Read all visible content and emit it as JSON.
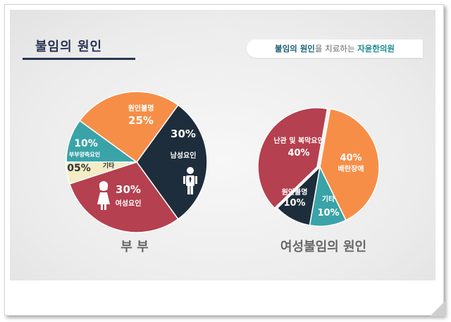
{
  "header": {
    "title": "불임의 원인",
    "tagline_part1": "불임의 원인",
    "tagline_part2": "을 치료하는 ",
    "tagline_part3": "자윤한의원"
  },
  "colors": {
    "navy": "#1e2d3b",
    "crimson": "#b5404f",
    "orange": "#f68e48",
    "teal": "#3aa3a8",
    "cream": "#f3ecc4"
  },
  "icons": {
    "male": "male-person-icon",
    "female": "female-person-icon"
  },
  "chart_data": [
    {
      "type": "pie",
      "title": "부 부",
      "series": [
        {
          "name": "남성요인",
          "value": 30,
          "label": "30%",
          "color": "#1e2d3b"
        },
        {
          "name": "여성요인",
          "value": 30,
          "label": "30%",
          "color": "#b5404f"
        },
        {
          "name": "기타",
          "value": 5,
          "label": "05%",
          "color": "#f3ecc4"
        },
        {
          "name": "부부양측요인",
          "value": 10,
          "label": "10%",
          "color": "#3aa3a8"
        },
        {
          "name": "원인불명",
          "value": 25,
          "label": "25%",
          "color": "#f68e48"
        }
      ]
    },
    {
      "type": "pie",
      "title": "여성불임의 원인",
      "series": [
        {
          "name": "배란장애",
          "value": 40,
          "label": "40%",
          "color": "#f68e48"
        },
        {
          "name": "기타",
          "value": 10,
          "label": "10%",
          "color": "#3aa3a8"
        },
        {
          "name": "원인불명",
          "value": 10,
          "label": "10%",
          "color": "#1e2d3b"
        },
        {
          "name": "난관 및 복막요인",
          "value": 40,
          "label": "40%",
          "color": "#b5404f"
        }
      ]
    }
  ]
}
